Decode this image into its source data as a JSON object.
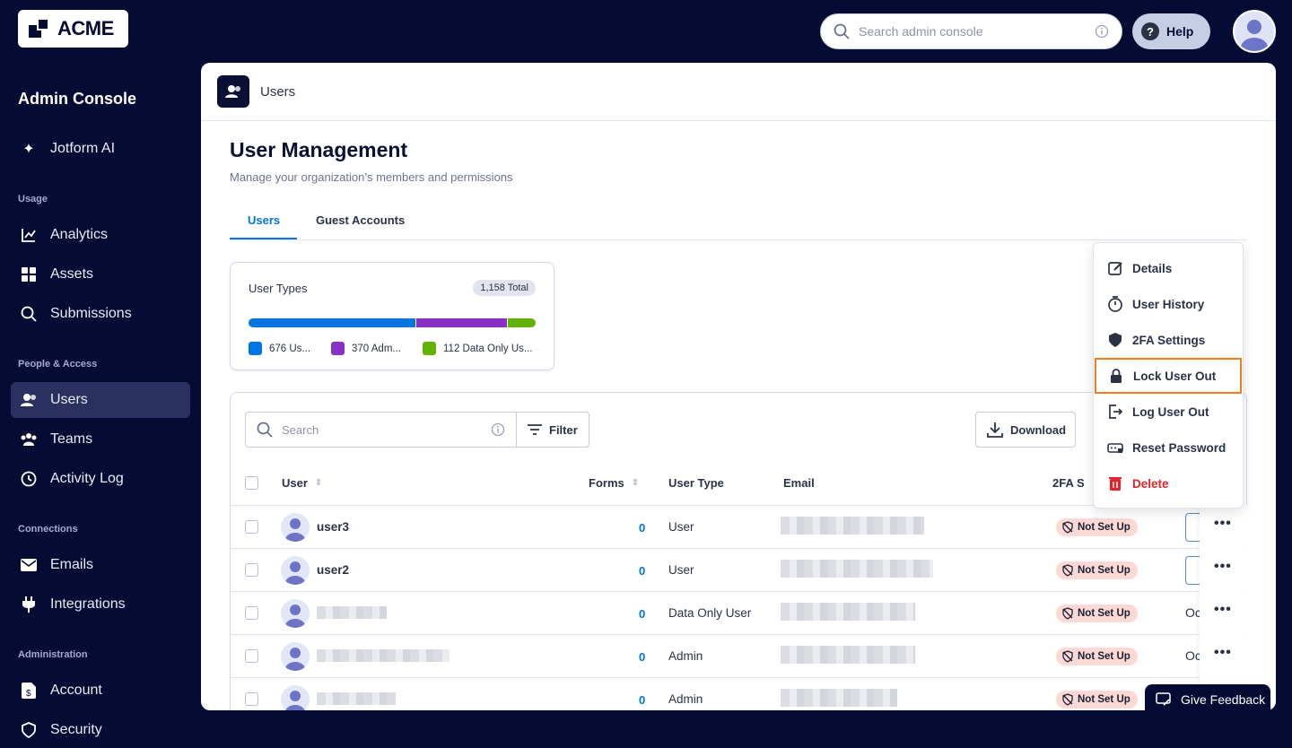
{
  "brand": {
    "logo": "ACME"
  },
  "topbar": {
    "search_placeholder": "Search admin console",
    "help_label": "Help"
  },
  "sidebar": {
    "title": "Admin Console",
    "top_item": {
      "label": "Jotform AI",
      "icon": "sparkle-icon"
    },
    "sections": [
      {
        "label": "Usage",
        "items": [
          {
            "label": "Analytics",
            "icon": "chart-icon"
          },
          {
            "label": "Assets",
            "icon": "grid-icon"
          },
          {
            "label": "Submissions",
            "icon": "search-icon"
          }
        ]
      },
      {
        "label": "People & Access",
        "items": [
          {
            "label": "Users",
            "icon": "users-icon",
            "active": true
          },
          {
            "label": "Teams",
            "icon": "team-icon"
          },
          {
            "label": "Activity Log",
            "icon": "history-icon"
          }
        ]
      },
      {
        "label": "Connections",
        "items": [
          {
            "label": "Emails",
            "icon": "mail-icon"
          },
          {
            "label": "Integrations",
            "icon": "plug-icon"
          }
        ]
      },
      {
        "label": "Administration",
        "items": [
          {
            "label": "Account",
            "icon": "document-icon"
          },
          {
            "label": "Security",
            "icon": "shield-icon"
          }
        ]
      }
    ]
  },
  "header": {
    "title": "Users"
  },
  "page": {
    "title": "User Management",
    "subtitle": "Manage your organization’s members and permissions",
    "tabs": [
      {
        "label": "Users",
        "active": true
      },
      {
        "label": "Guest Accounts"
      }
    ]
  },
  "user_types": {
    "title": "User Types",
    "total": "1,158 Total",
    "segments": [
      {
        "value": 676,
        "label": "676 Us...",
        "color": "#0075e3"
      },
      {
        "value": 370,
        "label": "370 Adm...",
        "color": "#8b2fc9"
      },
      {
        "value": 112,
        "label": "112 Data Only Us...",
        "color": "#64b200"
      }
    ]
  },
  "table": {
    "search_placeholder": "Search",
    "filter_label": "Filter",
    "download_label": "Download",
    "columns": [
      "User",
      "Forms",
      "User Type",
      "Email",
      "2FA S"
    ],
    "rows": [
      {
        "user": "user3",
        "forms": "0",
        "type": "User",
        "twofa": "Not Set Up",
        "last": ""
      },
      {
        "user": "user2",
        "forms": "0",
        "type": "User",
        "twofa": "Not Set Up",
        "last": ""
      },
      {
        "user": "",
        "forms": "0",
        "type": "Data Only User",
        "twofa": "Not Set Up",
        "last": "Oc"
      },
      {
        "user": "",
        "forms": "0",
        "type": "Admin",
        "twofa": "Not Set Up",
        "last": "Oc"
      },
      {
        "user": "",
        "forms": "0",
        "type": "Admin",
        "twofa": "Not Set Up",
        "last": ""
      }
    ]
  },
  "menu": {
    "items": [
      {
        "label": "Details",
        "icon": "edit-icon"
      },
      {
        "label": "User History",
        "icon": "stopwatch-icon"
      },
      {
        "label": "2FA Settings",
        "icon": "shield-icon"
      },
      {
        "label": "Lock User Out",
        "icon": "lock-icon",
        "highlighted": true
      },
      {
        "label": "Log User Out",
        "icon": "logout-icon"
      },
      {
        "label": "Reset Password",
        "icon": "password-icon"
      },
      {
        "label": "Delete",
        "icon": "trash-icon",
        "danger": true
      }
    ]
  },
  "feedback": {
    "label": "Give Feedback"
  },
  "colors": {
    "sidebar": "#060b33",
    "accent": "#0075e3",
    "danger": "#e3242b",
    "highlight": "#f07e1c"
  }
}
